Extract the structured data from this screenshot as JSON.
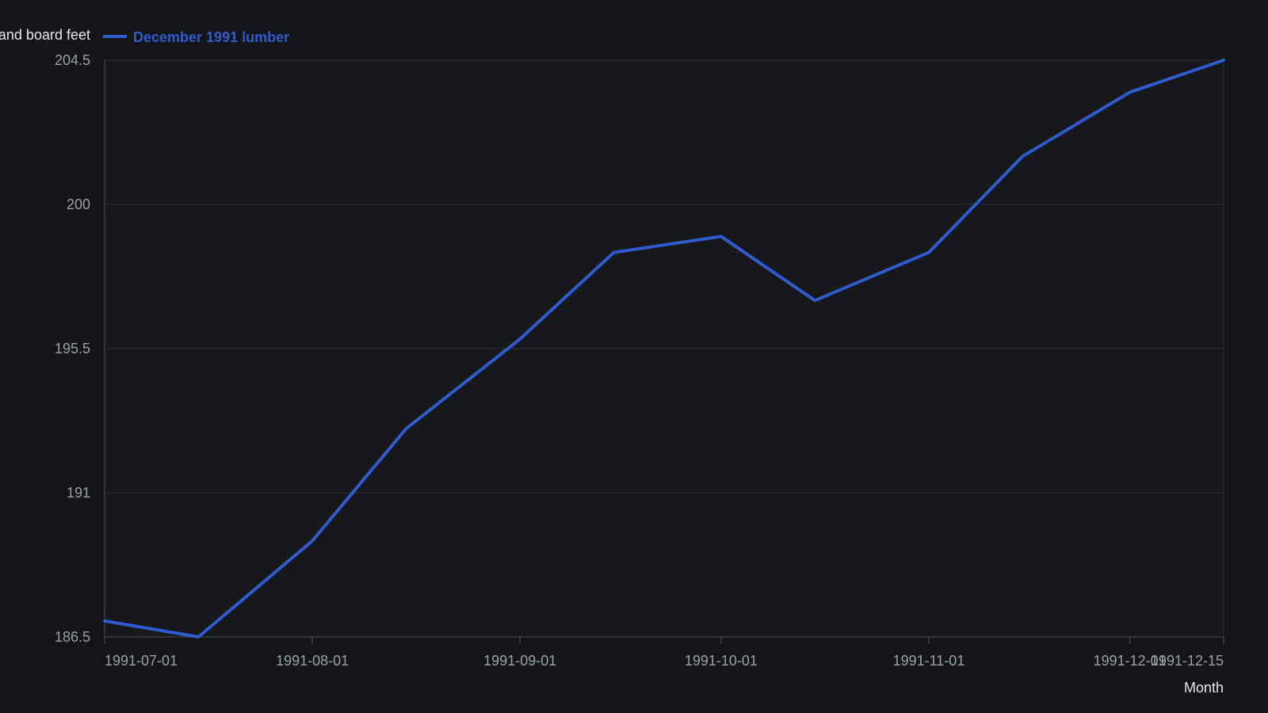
{
  "chart_data": {
    "type": "line",
    "title": "",
    "xlabel": "Month",
    "ylabel": "Thousand board feet",
    "ylim": [
      186.5,
      204.5
    ],
    "yticks": [
      "186.5",
      "191",
      "195.5",
      "200",
      "204.5"
    ],
    "xticks": [
      "1991-07-01",
      "1991-08-01",
      "1991-09-01",
      "1991-10-01",
      "1991-11-01",
      "1991-12-01",
      "1991-12-15"
    ],
    "xrange": [
      "1991-07-01",
      "1991-12-15"
    ],
    "grid": true,
    "legend_position": "top-left",
    "series": [
      {
        "name": "December 1991 lumber",
        "color": "#2f5bcc",
        "x": [
          "1991-07-01",
          "1991-07-15",
          "1991-08-01",
          "1991-08-15",
          "1991-09-01",
          "1991-09-15",
          "1991-10-01",
          "1991-10-15",
          "1991-11-01",
          "1991-11-15",
          "1991-12-01",
          "1991-12-15"
        ],
        "values": [
          187.0,
          186.5,
          189.5,
          193.0,
          195.8,
          198.5,
          199.0,
          197.0,
          198.5,
          201.5,
          203.5,
          204.5
        ]
      }
    ]
  },
  "colors": {
    "background": "#131519",
    "plot_background": "#16181c",
    "grid": "#2a2d33",
    "axis": "#3a3d44"
  }
}
